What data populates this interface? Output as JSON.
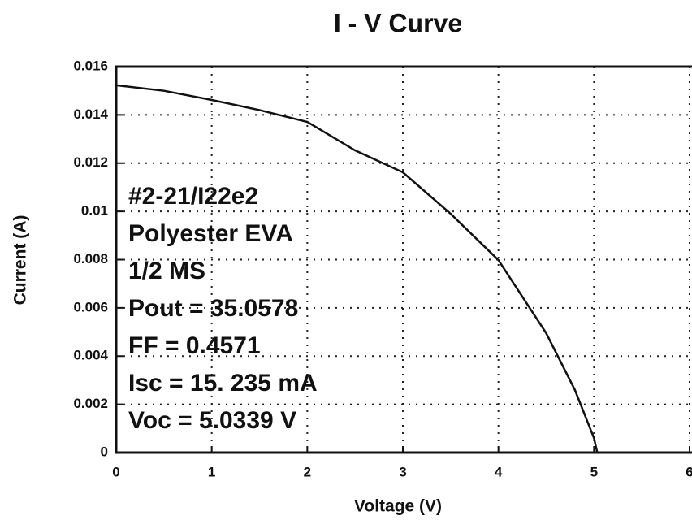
{
  "chart_data": {
    "type": "line",
    "title": "I - V Curve",
    "x_label": "Voltage (V)",
    "y_label": "Current (A)",
    "annotations": [
      "#2-21/I22e2",
      "Polyester EVA",
      "1/2 MS",
      "Pout = 35.0578",
      "FF = 0.4571",
      "Isc = 15. 235 mA",
      "Voc = 5.0339 V"
    ],
    "x": [
      0,
      0.5,
      1,
      1.5,
      2,
      2.5,
      3,
      3.5,
      4,
      4.5,
      4.8,
      5,
      5.034
    ],
    "values": [
      0.01523,
      0.015,
      0.01462,
      0.0142,
      0.01371,
      0.01253,
      0.01162,
      0.0099,
      0.00798,
      0.00495,
      0.0026,
      0.0006,
      0
    ],
    "color": "#111111",
    "xlim": [
      0,
      6
    ],
    "xticks": [
      0,
      1,
      2,
      3,
      4,
      5,
      6
    ],
    "ylim": [
      0,
      0.016
    ],
    "yticks": [
      0,
      0.002,
      0.004,
      0.006,
      0.008,
      0.01,
      0.012,
      0.014,
      0.016
    ],
    "grid": true
  }
}
